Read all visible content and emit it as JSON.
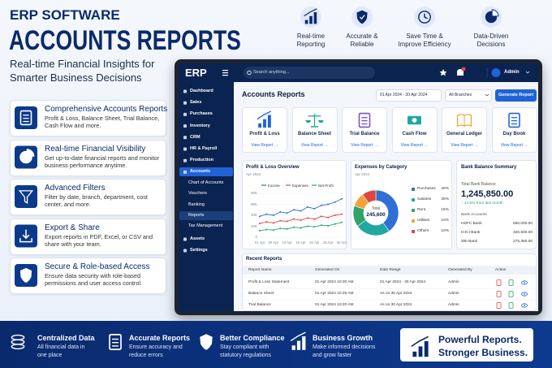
{
  "header": {
    "eyebrow": "ERP SOFTWARE",
    "title": "ACCOUNTS REPORTS",
    "subtitle": [
      "Real-time Financial Insights for",
      "Smarter Business Decisions"
    ]
  },
  "highlights": [
    {
      "label": [
        "Real-time",
        "Reporting"
      ]
    },
    {
      "label": [
        "Accurate &",
        "Reliable"
      ]
    },
    {
      "label": [
        "Save Time &",
        "Improve Efficiency"
      ]
    },
    {
      "label": [
        "Data-Driven",
        "Decisions"
      ]
    }
  ],
  "features": [
    {
      "title": "Comprehensive Accounts Reports",
      "description": "Profit & Loss, Balance Sheet, Trial Balance, Cash Flow and more."
    },
    {
      "title": "Real-time Financial Visibility",
      "description": "Get up-to-date financial reports and monitor business performance anytime."
    },
    {
      "title": "Advanced Filters",
      "description": "Filter by date, branch, department, cost center, and more."
    },
    {
      "title": "Export & Share",
      "description": "Export reports in PDF, Excel, or CSV and share with your team."
    },
    {
      "title": "Secure & Role-based Access",
      "description": "Ensure data security with role-based permissions and user access control."
    }
  ],
  "app": {
    "logo": "ERP",
    "search": "Search anything...",
    "user": "Admin",
    "sidebar": {
      "items": [
        {
          "label": "Dashboard"
        },
        {
          "label": "Sales"
        },
        {
          "label": "Purchases"
        },
        {
          "label": "Inventory"
        },
        {
          "label": "CRM"
        },
        {
          "label": "HR & Payroll"
        },
        {
          "label": "Production"
        },
        {
          "label": "Accounts",
          "active": true
        }
      ],
      "submenu": [
        {
          "label": "Chart of Accounts"
        },
        {
          "label": "Vouchers"
        },
        {
          "label": "Banking"
        },
        {
          "label": "Reports",
          "active": true
        },
        {
          "label": "Tax Management"
        }
      ],
      "bottom_items": [
        {
          "label": "Assets"
        },
        {
          "label": "Settings"
        }
      ]
    },
    "page_title": "Accounts Reports",
    "date_range": "01 Apr 2024 - 30 Apr 2024",
    "branch": "All Branches",
    "button": "Generate Report",
    "report_cards": [
      {
        "name": "Profit & Loss"
      },
      {
        "name": "Balance Sheet"
      },
      {
        "name": "Trial Balance"
      },
      {
        "name": "Cash Flow"
      },
      {
        "name": "General Ledger"
      },
      {
        "name": "Day Book"
      }
    ],
    "report_link": "View Report →",
    "bank": {
      "title": "Bank Balance Summary",
      "total_label": "Total Bank Balance",
      "total": "1,245,850.00",
      "change": "↑ 12.5% from last month",
      "accounts_label": "Bank Accounts",
      "accounts": [
        {
          "name": "HDFC Bank",
          "amount": "650,000.00"
        },
        {
          "name": "ICICI Bank",
          "amount": "320,500.00"
        },
        {
          "name": "SBI Bank",
          "amount": "275,350.00"
        }
      ]
    },
    "recent": {
      "title": "Recent Reports",
      "columns": [
        "Report Name",
        "Generated On",
        "Date Range",
        "Generated By",
        "Action"
      ],
      "rows": [
        [
          "Profit & Loss Statement",
          "01 Apr 2024 10:30 AM",
          "01 Apr 2024 - 30 Apr 2024",
          "Admin"
        ],
        [
          "Balance Sheet",
          "01 Apr 2024 10:25 AM",
          "As on 30 Apr 2024",
          "Admin"
        ],
        [
          "Trial Balance",
          "01 Apr 2024 10:20 AM",
          "As on 30 Apr 2024",
          "Admin"
        ]
      ]
    }
  },
  "chart_data": [
    {
      "type": "line",
      "title": "Profit & Loss Overview",
      "subtitle": "Apr 2024",
      "categories": [
        "01 Apr",
        null,
        "05 Apr",
        null,
        "10 Apr",
        null,
        "15 Apr",
        null,
        "20 Apr",
        null,
        "25 Apr",
        null,
        "30 Apr"
      ],
      "series": [
        {
          "name": "Income",
          "color": "#2f6fd6",
          "values": [
            38000,
            42000,
            40000,
            46000,
            44000,
            50000,
            48000,
            55000,
            52000,
            58000,
            60000,
            64000,
            70000
          ]
        },
        {
          "name": "Expenses",
          "color": "#e0463f",
          "values": [
            25000,
            28000,
            26000,
            30000,
            29000,
            33000,
            31000,
            35000,
            33000,
            38000,
            36000,
            40000,
            42000
          ]
        },
        {
          "name": "Net Profit",
          "color": "#2ea36b",
          "values": [
            12000,
            14000,
            13000,
            16000,
            15000,
            18000,
            17000,
            20000,
            19000,
            22000,
            21000,
            24000,
            27000
          ]
        }
      ],
      "ylim": [
        0,
        80000
      ],
      "yticks": [
        0,
        {
          "value": 20000,
          "label": "20K"
        },
        {
          "value": 40000,
          "label": "40K"
        },
        {
          "value": 60000,
          "label": "60K"
        },
        {
          "value": 80000,
          "label": "80K"
        }
      ],
      "grid": true
    },
    {
      "type": "pie",
      "title": "Expenses by Category",
      "subtitle": "Apr 2024",
      "center_label": "Total",
      "center_value": "245,600",
      "categories": [
        "Purchases",
        "Salaries",
        "Rent",
        "Utilities",
        "Others"
      ],
      "values": [
        40,
        25,
        15,
        10,
        10
      ],
      "value_labels": [
        "40%",
        "25%",
        "15%",
        "10%",
        "10%"
      ],
      "colors": [
        "#2f6fd6",
        "#22a7a0",
        "#2ea36b",
        "#f2a33a",
        "#e0463f"
      ],
      "donut": true
    }
  ],
  "bottom": {
    "items": [
      {
        "title": "Centralized Data",
        "description": [
          "All financial data in",
          "one place"
        ]
      },
      {
        "title": "Accurate Reports",
        "description": [
          "Ensure accuracy and",
          "reduce errors"
        ]
      },
      {
        "title": "Better Compliance",
        "description": [
          "Stay compliant with",
          "statutory regulations"
        ]
      },
      {
        "title": "Business Growth",
        "description": [
          "Make informed decisions",
          "and grow faster"
        ]
      }
    ],
    "slogan": [
      "Powerful Reports.",
      "Stronger Business."
    ]
  }
}
